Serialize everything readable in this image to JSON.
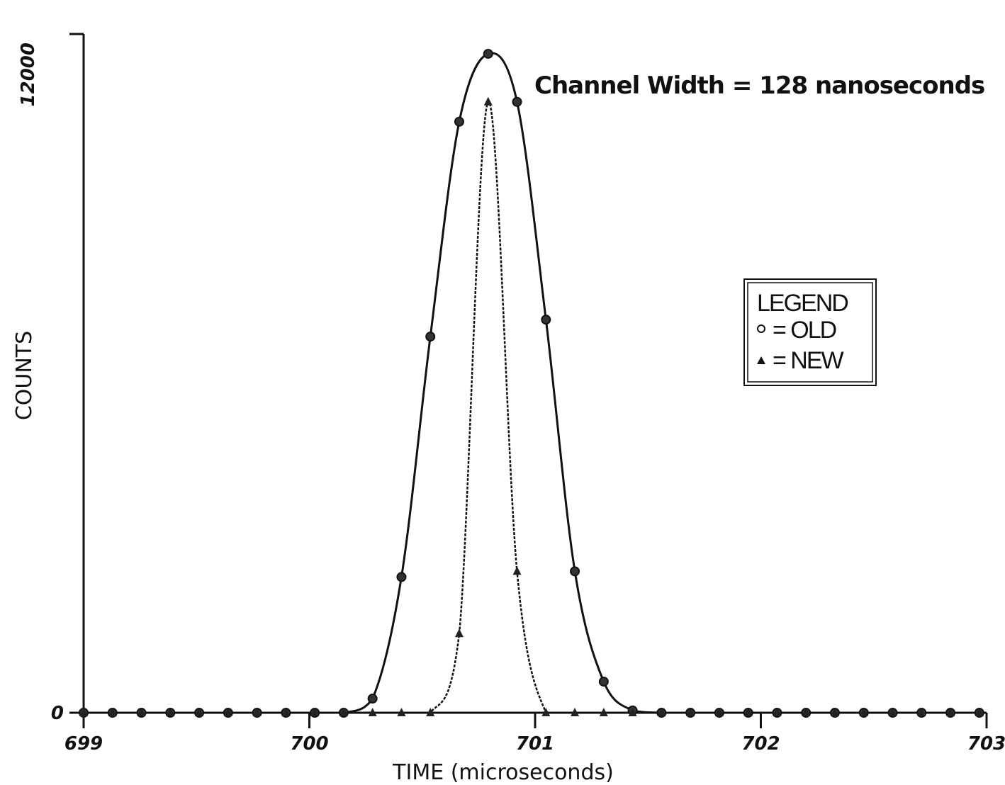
{
  "chart_data": {
    "type": "scatter",
    "title": "",
    "xlabel": "TIME (microseconds)",
    "ylabel": "COUNTS",
    "xlim": [
      699,
      703
    ],
    "ylim": [
      0,
      12000
    ],
    "x_ticks": [
      "699",
      "700",
      "701",
      "702",
      "703"
    ],
    "y_ticks": [
      "0",
      "12000"
    ],
    "annotation": "Channel Width = 128 nanoseconds",
    "legend": {
      "title": "LEGEND",
      "position": "right",
      "entries": [
        "= OLD",
        "= NEW"
      ]
    },
    "series": [
      {
        "name": "OLD",
        "marker": "circle",
        "x": [
          699.0,
          699.128,
          699.256,
          699.384,
          699.512,
          699.64,
          699.768,
          699.896,
          700.024,
          700.152,
          700.28,
          700.408,
          700.536,
          700.664,
          700.792,
          700.92,
          701.048,
          701.176,
          701.304,
          701.432,
          701.56,
          701.688,
          701.816,
          701.944,
          702.072,
          702.2,
          702.328,
          702.456,
          702.584,
          702.712,
          702.84,
          702.968
        ],
        "y": [
          0,
          0,
          0,
          0,
          0,
          0,
          0,
          0,
          0,
          0,
          250,
          2400,
          6650,
          10450,
          11650,
          10800,
          6950,
          2500,
          550,
          40,
          0,
          0,
          0,
          0,
          0,
          0,
          0,
          0,
          0,
          0,
          0,
          0
        ]
      },
      {
        "name": "NEW",
        "marker": "triangle",
        "x": [
          699.0,
          699.128,
          699.256,
          699.384,
          699.512,
          699.64,
          699.768,
          699.896,
          700.024,
          700.152,
          700.28,
          700.408,
          700.536,
          700.664,
          700.792,
          700.92,
          701.048,
          701.176,
          701.304,
          701.432,
          701.56,
          701.688,
          701.816,
          701.944,
          702.072,
          702.2,
          702.328,
          702.456,
          702.584,
          702.712,
          702.84,
          702.968
        ],
        "y": [
          0,
          0,
          0,
          0,
          0,
          0,
          0,
          0,
          0,
          0,
          0,
          0,
          0,
          1400,
          10800,
          2500,
          0,
          0,
          0,
          0,
          0,
          0,
          0,
          0,
          0,
          0,
          0,
          0,
          0,
          0,
          0,
          0
        ]
      }
    ]
  }
}
